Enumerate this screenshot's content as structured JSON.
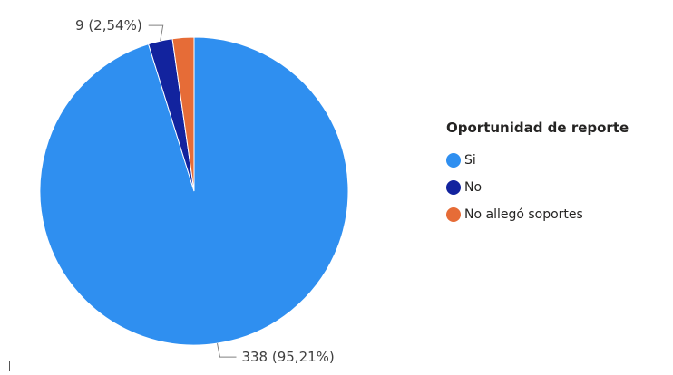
{
  "chart_data": {
    "type": "pie",
    "legend_title": "Oportunidad de reporte",
    "legend_position": "right",
    "slices": [
      {
        "label": "Si",
        "value": 338,
        "percent": 95.21,
        "data_label": "338 (95,21%)",
        "color": "#2f8ff0"
      },
      {
        "label": "No",
        "value": 9,
        "percent": 2.54,
        "data_label": "9 (2,54%)",
        "color": "#12239e"
      },
      {
        "label": "No allegó soportes",
        "value": 8,
        "percent": 2.25,
        "data_label": "",
        "color": "#e66c37"
      }
    ]
  }
}
